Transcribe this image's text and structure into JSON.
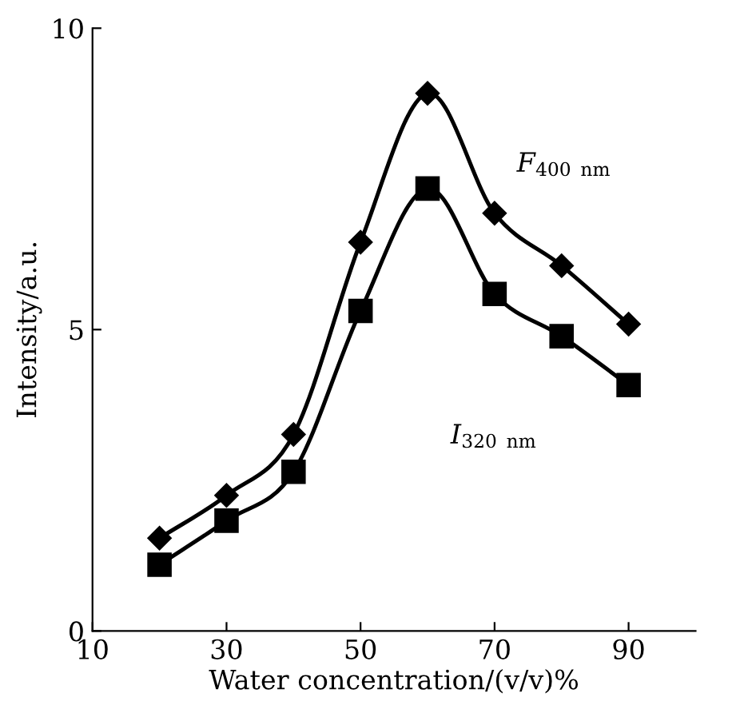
{
  "chart_data": {
    "type": "line",
    "xlabel": "Water concentration/(v/v)%",
    "ylabel": "Intensity/a.u.",
    "x": [
      20,
      30,
      40,
      50,
      60,
      70,
      80,
      90
    ],
    "series": [
      {
        "name": "F$_{400 nm}$",
        "color": "#000000",
        "marker": "diamond",
        "values": [
          1.54,
          2.25,
          3.26,
          6.45,
          8.92,
          6.93,
          6.06,
          5.09
        ]
      },
      {
        "name": "I$_{320 nm}$",
        "color": "#000000",
        "marker": "square",
        "values": [
          1.1,
          1.83,
          2.64,
          5.31,
          7.34,
          5.59,
          4.89,
          4.08
        ]
      }
    ],
    "xlim": [
      10,
      100
    ],
    "xticks": [
      10,
      30,
      50,
      70,
      90
    ],
    "ylim": [
      0,
      10
    ],
    "yticks": [
      0,
      5,
      10
    ],
    "grid": false,
    "legend": false,
    "line_style": "solid"
  }
}
